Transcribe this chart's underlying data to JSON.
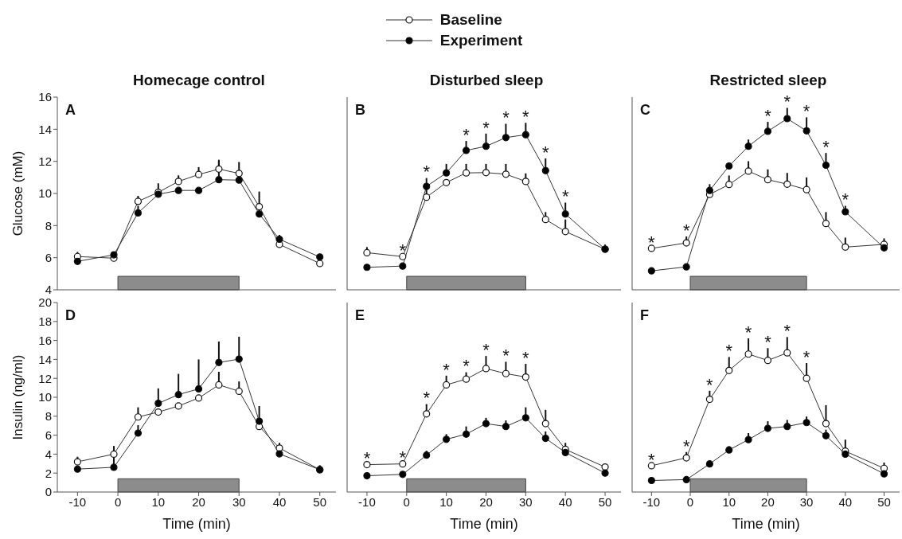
{
  "chart_data": [
    {
      "type": "line",
      "title": "Homecage control",
      "ylabel": "Glucose (mM)",
      "x": [
        -10,
        -1,
        5,
        10,
        15,
        20,
        25,
        30,
        35,
        40,
        50
      ],
      "xlim": [
        -15,
        54
      ],
      "xticks": [
        -10,
        0,
        10,
        20,
        30,
        40,
        50
      ],
      "ylim": [
        4,
        16
      ],
      "yticks": [
        4,
        6,
        8,
        10,
        12,
        14,
        16
      ],
      "tick_labels": "y",
      "marker": "circle",
      "line_style": "solid",
      "legend": "top",
      "series": [
        {
          "name": "Baseline",
          "color": "#ffffff",
          "values": [
            6.07,
            5.97,
            9.51,
            10.07,
            10.75,
            11.18,
            11.52,
            11.25,
            9.18,
            6.83,
            5.64
          ],
          "errors": [
            [
              6.07,
              6.36
            ],
            null,
            [
              9.51,
              9.85
            ],
            null,
            [
              10.75,
              11.13
            ],
            [
              11.18,
              11.64
            ],
            [
              11.52,
              12.1
            ],
            null,
            null,
            null,
            null
          ]
        },
        {
          "name": "Experiment",
          "color": "#000000",
          "values": [
            5.77,
            6.18,
            8.79,
            9.95,
            10.19,
            10.19,
            10.86,
            10.83,
            8.72,
            7.15,
            6.04
          ],
          "errors": [
            null,
            [
              6.18,
              6.36
            ],
            [
              8.79,
              9.23
            ],
            [
              9.95,
              10.63
            ],
            null,
            null,
            [
              10.86,
              12.04
            ],
            [
              10.83,
              11.96
            ],
            [
              8.72,
              10.12
            ],
            [
              7.15,
              7.42
            ],
            [
              6.04,
              6.24
            ]
          ]
        }
      ],
      "bands": [
        {
          "axis": "x",
          "from": 0,
          "to": 30,
          "color": "#8c8c8c"
        }
      ],
      "annotations": [
        "A"
      ]
    },
    {
      "type": "line",
      "title": "Disturbed sleep",
      "x": [
        -10,
        -1,
        5,
        10,
        15,
        20,
        25,
        30,
        35,
        40,
        50
      ],
      "xlim": [
        -15,
        54
      ],
      "xticks": [
        -10,
        0,
        10,
        20,
        30,
        40,
        50
      ],
      "ylim": [
        4,
        16
      ],
      "yticks": [
        4,
        6,
        8,
        10,
        12,
        14,
        16
      ],
      "tick_labels": false,
      "marker": "circle",
      "line_style": "solid",
      "series": [
        {
          "color": "#ffffff",
          "values": [
            6.31,
            6.07,
            9.77,
            10.68,
            11.28,
            11.3,
            11.2,
            10.75,
            8.38,
            7.63,
            6.53
          ],
          "errors": [
            [
              6.31,
              6.66
            ],
            null,
            [
              9.77,
              10.24
            ],
            null,
            [
              11.28,
              11.84
            ],
            [
              11.3,
              11.84
            ],
            [
              11.2,
              11.84
            ],
            [
              10.75,
              11.25
            ],
            [
              8.38,
              8.84
            ],
            [
              7.63,
              8.38
            ],
            null
          ]
        },
        {
          "color": "#000000",
          "values": [
            5.4,
            5.48,
            10.44,
            11.28,
            12.68,
            12.94,
            13.48,
            13.66,
            11.42,
            8.72,
            6.53
          ],
          "errors": [
            null,
            null,
            [
              10.44,
              10.96
            ],
            [
              11.28,
              11.84
            ],
            [
              12.68,
              13.27
            ],
            [
              12.94,
              13.73
            ],
            [
              13.48,
              14.34
            ],
            [
              13.66,
              14.4
            ],
            [
              11.42,
              12.18
            ],
            [
              8.72,
              9.43
            ],
            [
              6.53,
              6.82
            ]
          ]
        }
      ],
      "bands": [
        {
          "axis": "x",
          "from": 0,
          "to": 30,
          "color": "#8c8c8c"
        }
      ],
      "annotations": [
        "B",
        {
          "text": "*",
          "x": -1,
          "y": 6.07
        },
        {
          "text": "*",
          "x": 5,
          "y": 10.44
        },
        {
          "text": "*",
          "x": 15,
          "y": 12.68
        },
        {
          "text": "*",
          "x": 20,
          "y": 12.94
        },
        {
          "text": "*",
          "x": 25,
          "y": 13.48
        },
        {
          "text": "*",
          "x": 30,
          "y": 13.66
        },
        {
          "text": "*",
          "x": 35,
          "y": 11.42
        },
        {
          "text": "*",
          "x": 40,
          "y": 8.72
        }
      ]
    },
    {
      "type": "line",
      "title": "Restricted sleep",
      "x": [
        -10,
        -1,
        5,
        10,
        15,
        20,
        25,
        30,
        35,
        40,
        50
      ],
      "xlim": [
        -15,
        54
      ],
      "xticks": [
        -10,
        0,
        10,
        20,
        30,
        40,
        50
      ],
      "ylim": [
        4,
        16
      ],
      "yticks": [
        4,
        6,
        8,
        10,
        12,
        14,
        16
      ],
      "tick_labels": false,
      "marker": "circle",
      "line_style": "solid",
      "series": [
        {
          "color": "#ffffff",
          "values": [
            6.58,
            6.92,
            9.94,
            10.56,
            11.39,
            10.86,
            10.58,
            10.24,
            8.13,
            6.66,
            6.83
          ],
          "errors": [
            null,
            [
              6.92,
              7.32
            ],
            null,
            [
              10.56,
              11.12
            ],
            [
              11.39,
              12.01
            ],
            [
              10.86,
              11.5
            ],
            [
              10.58,
              11.28
            ],
            [
              10.24,
              11.0
            ],
            [
              8.13,
              8.84
            ],
            [
              6.66,
              7.25
            ],
            [
              6.83,
              7.2
            ]
          ]
        },
        {
          "color": "#000000",
          "values": [
            5.18,
            5.43,
            10.19,
            11.71,
            12.94,
            13.87,
            14.66,
            13.9,
            11.76,
            8.86,
            6.61
          ],
          "errors": [
            null,
            null,
            [
              10.19,
              10.58
            ],
            null,
            [
              12.94,
              13.36
            ],
            [
              13.87,
              14.46
            ],
            [
              14.66,
              15.33
            ],
            [
              13.9,
              14.74
            ],
            [
              11.76,
              12.52
            ],
            [
              8.86,
              9.23
            ],
            null
          ]
        }
      ],
      "bands": [
        {
          "axis": "x",
          "from": 0,
          "to": 30,
          "color": "#8c8c8c"
        }
      ],
      "annotations": [
        "C",
        {
          "text": "*",
          "x": -10,
          "y": 6.58
        },
        {
          "text": "*",
          "x": -1,
          "y": 6.92
        },
        {
          "text": "*",
          "x": 20,
          "y": 13.87
        },
        {
          "text": "*",
          "x": 25,
          "y": 14.66
        },
        {
          "text": "*",
          "x": 30,
          "y": 13.9
        },
        {
          "text": "*",
          "x": 35,
          "y": 11.76
        },
        {
          "text": "*",
          "x": 40,
          "y": 8.86
        }
      ]
    },
    {
      "type": "line",
      "xlabel": "Time (min)",
      "ylabel": "Insulin (ng/ml)",
      "x": [
        -10,
        -1,
        5,
        10,
        15,
        20,
        25,
        30,
        35,
        40,
        50
      ],
      "xlim": [
        -15,
        54
      ],
      "xticks": [
        -10,
        0,
        10,
        20,
        30,
        40,
        50
      ],
      "ylim": [
        0,
        20
      ],
      "yticks": [
        0,
        2,
        4,
        6,
        8,
        10,
        12,
        14,
        16,
        18,
        20
      ],
      "marker": "circle",
      "line_style": "solid",
      "series": [
        {
          "color": "#ffffff",
          "values": [
            3.19,
            4.0,
            7.92,
            8.44,
            9.08,
            9.92,
            11.31,
            10.64,
            6.92,
            4.64,
            2.36
          ],
          "errors": [
            [
              3.19,
              3.72
            ],
            null,
            [
              7.92,
              8.94
            ],
            null,
            null,
            null,
            [
              11.31,
              12.69
            ],
            [
              10.64,
              11.67
            ],
            null,
            [
              4.64,
              5.19
            ],
            null
          ]
        },
        {
          "color": "#000000",
          "values": [
            2.42,
            2.61,
            6.22,
            9.36,
            10.28,
            10.89,
            13.67,
            14.03,
            7.47,
            4.03,
            2.36
          ],
          "errors": [
            null,
            [
              2.61,
              4.86
            ],
            [
              6.22,
              7.06
            ],
            [
              9.36,
              10.94
            ],
            [
              10.28,
              12.47
            ],
            [
              10.89,
              14.0
            ],
            [
              13.67,
              15.89
            ],
            [
              14.03,
              16.39
            ],
            [
              7.47,
              9.08
            ],
            null,
            [
              2.36,
              2.83
            ]
          ]
        }
      ],
      "bands": [
        {
          "axis": "x",
          "from": 0,
          "to": 30,
          "color": "#8c8c8c"
        }
      ],
      "annotations": [
        "D"
      ]
    },
    {
      "type": "line",
      "xlabel": "Time (min)",
      "x": [
        -10,
        -1,
        5,
        10,
        15,
        20,
        25,
        30,
        35,
        40,
        50
      ],
      "xlim": [
        -15,
        54
      ],
      "xticks": [
        -10,
        0,
        10,
        20,
        30,
        40,
        50
      ],
      "ylim": [
        0,
        20
      ],
      "yticks": [
        0,
        2,
        4,
        6,
        8,
        10,
        12,
        14,
        16,
        18,
        20
      ],
      "tick_labels": "x",
      "marker": "circle",
      "line_style": "solid",
      "series": [
        {
          "color": "#ffffff",
          "values": [
            2.89,
            2.97,
            8.25,
            11.31,
            11.92,
            13.03,
            12.5,
            12.14,
            7.22,
            4.5,
            2.64
          ],
          "errors": [
            null,
            null,
            [
              8.25,
              9.28
            ],
            [
              11.31,
              12.28
            ],
            [
              11.92,
              12.64
            ],
            [
              13.03,
              14.36
            ],
            [
              12.5,
              13.75
            ],
            [
              12.14,
              13.53
            ],
            [
              7.22,
              8.67
            ],
            [
              4.5,
              5.19
            ],
            null
          ]
        },
        {
          "color": "#000000",
          "values": [
            1.72,
            1.86,
            3.89,
            5.56,
            6.11,
            7.22,
            6.92,
            7.83,
            5.67,
            4.17,
            2.0
          ],
          "errors": [
            null,
            null,
            [
              3.89,
              4.36
            ],
            [
              5.56,
              6.11
            ],
            [
              6.11,
              6.92
            ],
            [
              7.22,
              7.83
            ],
            [
              6.92,
              7.56
            ],
            [
              7.83,
              8.94
            ],
            [
              5.67,
              6.39
            ],
            null,
            null
          ]
        }
      ],
      "bands": [
        {
          "axis": "x",
          "from": 0,
          "to": 30,
          "color": "#8c8c8c"
        }
      ],
      "annotations": [
        "E",
        {
          "text": "*",
          "x": -10,
          "y": 2.89
        },
        {
          "text": "*",
          "x": -1,
          "y": 2.97
        },
        {
          "text": "*",
          "x": 5,
          "y": 8.25
        },
        {
          "text": "*",
          "x": 10,
          "y": 11.31
        },
        {
          "text": "*",
          "x": 15,
          "y": 11.92
        },
        {
          "text": "*",
          "x": 20,
          "y": 13.03
        },
        {
          "text": "*",
          "x": 25,
          "y": 12.5
        },
        {
          "text": "*",
          "x": 30,
          "y": 12.14
        }
      ]
    },
    {
      "type": "line",
      "xlabel": "Time (min)",
      "x": [
        -10,
        -1,
        5,
        10,
        15,
        20,
        25,
        30,
        35,
        40,
        50
      ],
      "xlim": [
        -15,
        54
      ],
      "xticks": [
        -10,
        0,
        10,
        20,
        30,
        40,
        50
      ],
      "ylim": [
        0,
        20
      ],
      "yticks": [
        0,
        2,
        4,
        6,
        8,
        10,
        12,
        14,
        16,
        18,
        20
      ],
      "tick_labels": "x",
      "marker": "circle",
      "line_style": "solid",
      "series": [
        {
          "color": "#ffffff",
          "values": [
            2.78,
            3.61,
            9.78,
            12.83,
            14.56,
            13.89,
            14.69,
            12.0,
            7.22,
            4.31,
            2.5
          ],
          "errors": [
            null,
            [
              3.61,
              4.22
            ],
            [
              9.78,
              10.69
            ],
            [
              12.83,
              14.25
            ],
            [
              14.56,
              16.22
            ],
            [
              13.89,
              15.19
            ],
            [
              14.69,
              16.36
            ],
            [
              12.0,
              13.61
            ],
            [
              7.22,
              9.17
            ],
            [
              4.31,
              5.53
            ],
            [
              2.5,
              3.11
            ]
          ]
        },
        {
          "color": "#000000",
          "values": [
            1.22,
            1.31,
            2.97,
            4.44,
            5.53,
            6.72,
            6.92,
            7.33,
            5.94,
            4.0,
            1.92
          ],
          "errors": [
            null,
            null,
            null,
            [
              4.44,
              4.83
            ],
            [
              5.53,
              6.22
            ],
            [
              6.72,
              7.47
            ],
            [
              6.92,
              7.61
            ],
            [
              7.33,
              7.97
            ],
            [
              5.94,
              6.58
            ],
            null,
            null
          ]
        }
      ],
      "bands": [
        {
          "axis": "x",
          "from": 0,
          "to": 30,
          "color": "#8c8c8c"
        }
      ],
      "annotations": [
        "F",
        {
          "text": "*",
          "x": -10,
          "y": 2.78
        },
        {
          "text": "*",
          "x": -1,
          "y": 3.61
        },
        {
          "text": "*",
          "x": 5,
          "y": 9.78
        },
        {
          "text": "*",
          "x": 10,
          "y": 12.83
        },
        {
          "text": "*",
          "x": 15,
          "y": 14.56
        },
        {
          "text": "*",
          "x": 20,
          "y": 13.89
        },
        {
          "text": "*",
          "x": 25,
          "y": 14.69
        },
        {
          "text": "*",
          "x": 30,
          "y": 12.0
        }
      ]
    }
  ]
}
